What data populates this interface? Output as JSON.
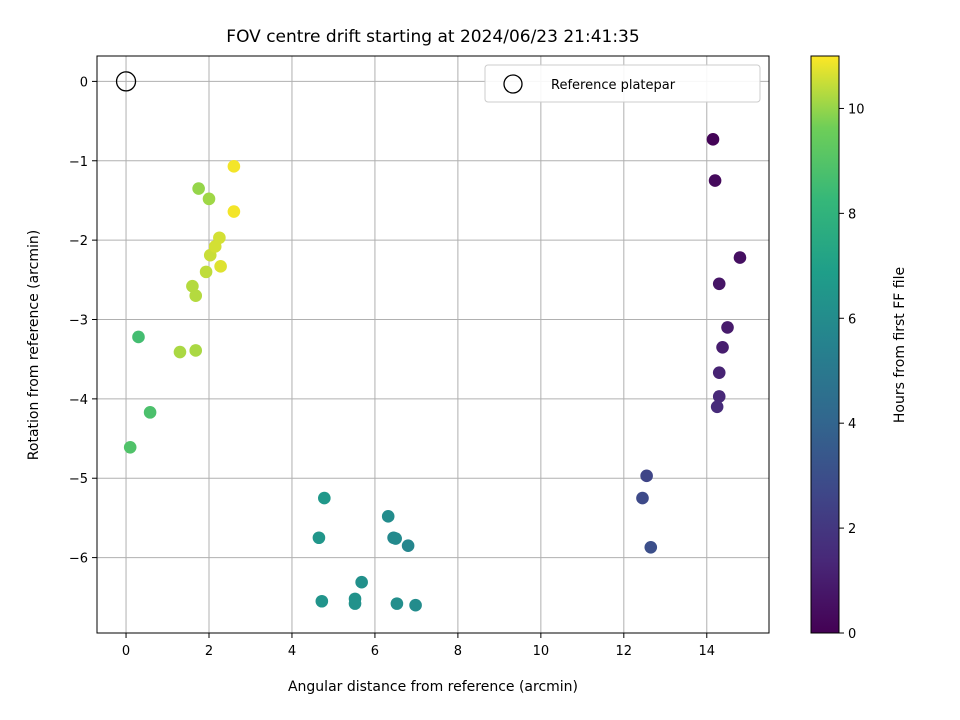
{
  "chart_data": {
    "type": "scatter",
    "title": "FOV centre drift starting at 2024/06/23 21:41:35",
    "xlabel": "Angular distance from reference (arcmin)",
    "ylabel": "Rotation from reference (arcmin)",
    "xlim": [
      -0.7,
      15.5
    ],
    "ylim": [
      -6.95,
      0.32
    ],
    "xticks": [
      0,
      2,
      4,
      6,
      8,
      10,
      12,
      14
    ],
    "yticks": [
      0,
      -1,
      -2,
      -3,
      -4,
      -5,
      -6
    ],
    "xtick_labels": [
      "0",
      "2",
      "4",
      "6",
      "8",
      "10",
      "12",
      "14"
    ],
    "ytick_labels": [
      "0",
      "−1",
      "−2",
      "−3",
      "−4",
      "−5",
      "−6"
    ],
    "grid": true,
    "colormap": "viridis",
    "colorbar": {
      "label": "Hours from first FF file",
      "range": [
        0,
        11
      ],
      "ticks": [
        0,
        2,
        4,
        6,
        8,
        10
      ],
      "tick_labels": [
        "0",
        "2",
        "4",
        "6",
        "8",
        "10"
      ]
    },
    "reference": {
      "name": "Reference platepar",
      "x": 0.0,
      "y": 0.0
    },
    "legend": {
      "placement": "top-right",
      "entries": [
        "Reference platepar"
      ]
    },
    "points": [
      {
        "x": 14.15,
        "y": -0.73,
        "c": 0.1
      },
      {
        "x": 14.2,
        "y": -1.25,
        "c": 0.3
      },
      {
        "x": 14.8,
        "y": -2.22,
        "c": 0.5
      },
      {
        "x": 14.3,
        "y": -2.55,
        "c": 0.7
      },
      {
        "x": 14.5,
        "y": -3.1,
        "c": 0.9
      },
      {
        "x": 14.38,
        "y": -3.35,
        "c": 1.0
      },
      {
        "x": 14.3,
        "y": -3.67,
        "c": 1.2
      },
      {
        "x": 14.3,
        "y": -3.97,
        "c": 1.4
      },
      {
        "x": 14.25,
        "y": -4.1,
        "c": 1.5
      },
      {
        "x": 12.55,
        "y": -4.97,
        "c": 2.6
      },
      {
        "x": 12.45,
        "y": -5.25,
        "c": 2.8
      },
      {
        "x": 12.65,
        "y": -5.87,
        "c": 3.0
      },
      {
        "x": 6.8,
        "y": -5.85,
        "c": 5.7
      },
      {
        "x": 6.45,
        "y": -5.75,
        "c": 5.8
      },
      {
        "x": 6.5,
        "y": -5.76,
        "c": 5.9
      },
      {
        "x": 6.32,
        "y": -5.48,
        "c": 6.0
      },
      {
        "x": 4.78,
        "y": -5.25,
        "c": 6.6
      },
      {
        "x": 4.65,
        "y": -5.75,
        "c": 6.5
      },
      {
        "x": 5.68,
        "y": -6.31,
        "c": 6.2
      },
      {
        "x": 5.52,
        "y": -6.52,
        "c": 6.3
      },
      {
        "x": 5.52,
        "y": -6.58,
        "c": 6.3
      },
      {
        "x": 4.72,
        "y": -6.55,
        "c": 6.4
      },
      {
        "x": 6.53,
        "y": -6.58,
        "c": 6.1
      },
      {
        "x": 6.98,
        "y": -6.6,
        "c": 6.0
      },
      {
        "x": 0.3,
        "y": -3.22,
        "c": 8.6
      },
      {
        "x": 0.58,
        "y": -4.17,
        "c": 8.8
      },
      {
        "x": 0.1,
        "y": -4.61,
        "c": 8.9
      },
      {
        "x": 1.3,
        "y": -3.41,
        "c": 10.2
      },
      {
        "x": 1.68,
        "y": -3.39,
        "c": 10.2
      },
      {
        "x": 1.6,
        "y": -2.58,
        "c": 10.3
      },
      {
        "x": 1.68,
        "y": -2.7,
        "c": 10.3
      },
      {
        "x": 1.93,
        "y": -2.4,
        "c": 10.4
      },
      {
        "x": 1.75,
        "y": -1.35,
        "c": 10.0
      },
      {
        "x": 2.0,
        "y": -1.48,
        "c": 10.1
      },
      {
        "x": 2.03,
        "y": -2.19,
        "c": 10.5
      },
      {
        "x": 2.15,
        "y": -2.08,
        "c": 10.6
      },
      {
        "x": 2.25,
        "y": -1.97,
        "c": 10.6
      },
      {
        "x": 2.28,
        "y": -2.33,
        "c": 10.7
      },
      {
        "x": 2.6,
        "y": -1.07,
        "c": 10.9
      },
      {
        "x": 2.6,
        "y": -1.64,
        "c": 10.9
      }
    ]
  }
}
